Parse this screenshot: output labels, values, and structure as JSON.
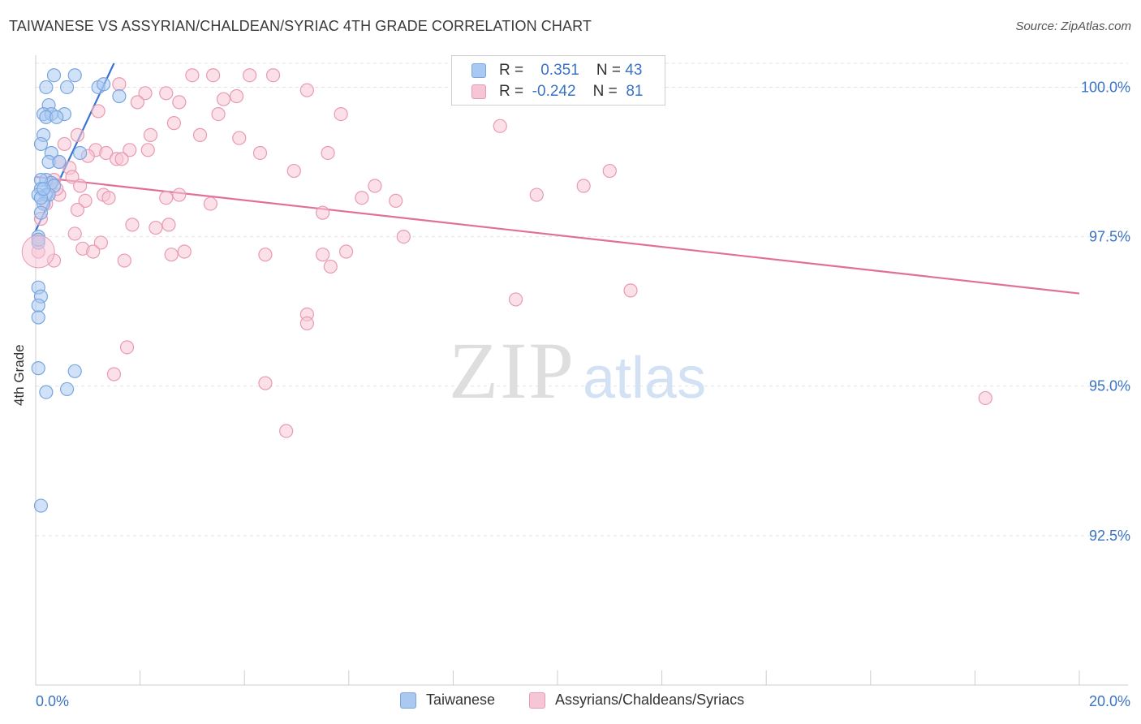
{
  "title": "TAIWANESE VS ASSYRIAN/CHALDEAN/SYRIAC 4TH GRADE CORRELATION CHART",
  "source": "Source: ZipAtlas.com",
  "watermark": {
    "zip": "ZIP",
    "atlas": "atlas"
  },
  "legend": {
    "rows": [
      {
        "r_label": "R =",
        "r_value": "0.351",
        "n_label": "N =",
        "n_value": "43",
        "color": "#a9c8f2",
        "border": "#7aa6de"
      },
      {
        "r_label": "R =",
        "r_value": "-0.242",
        "n_label": "N =",
        "n_value": "81",
        "color": "#f7c6d6",
        "border": "#e89ab4"
      }
    ]
  },
  "bottom_legend": [
    {
      "label": "Taiwanese",
      "color": "#a9c8f2",
      "border": "#7aa6de"
    },
    {
      "label": "Assyrians/Chaldeans/Syriacs",
      "color": "#f7c6d6",
      "border": "#e89ab4"
    }
  ],
  "chart_data": {
    "type": "scatter",
    "title": "TAIWANESE VS ASSYRIAN/CHALDEAN/SYRIAC 4TH GRADE CORRELATION CHART",
    "xlabel": "",
    "ylabel": "4th Grade",
    "xlim": [
      0,
      20
    ],
    "ylim": [
      90.0,
      100.4
    ],
    "x_tick_labels": [
      "0.0%",
      "20.0%"
    ],
    "y_ticks": [
      92.5,
      95.0,
      97.5,
      100.0
    ],
    "y_tick_labels": [
      "92.5%",
      "95.0%",
      "97.5%",
      "100.0%"
    ],
    "series": [
      {
        "name": "Taiwanese",
        "color": "#7aa6de",
        "fill": "#a9c8f2",
        "line_color": "#3b72d0",
        "trend": {
          "x": [
            0.0,
            1.5
          ],
          "y": [
            97.6,
            100.4
          ]
        },
        "points": [
          {
            "x": 0.35,
            "y": 100.2
          },
          {
            "x": 0.75,
            "y": 100.2
          },
          {
            "x": 0.2,
            "y": 100.0
          },
          {
            "x": 0.6,
            "y": 100.0
          },
          {
            "x": 1.2,
            "y": 100.0
          },
          {
            "x": 1.3,
            "y": 100.05
          },
          {
            "x": 1.6,
            "y": 99.85
          },
          {
            "x": 0.25,
            "y": 99.7
          },
          {
            "x": 0.15,
            "y": 99.55
          },
          {
            "x": 0.3,
            "y": 99.55
          },
          {
            "x": 0.55,
            "y": 99.55
          },
          {
            "x": 0.2,
            "y": 99.5
          },
          {
            "x": 0.4,
            "y": 99.5
          },
          {
            "x": 0.15,
            "y": 99.2
          },
          {
            "x": 0.1,
            "y": 99.05
          },
          {
            "x": 0.3,
            "y": 98.9
          },
          {
            "x": 0.85,
            "y": 98.9
          },
          {
            "x": 0.25,
            "y": 98.75
          },
          {
            "x": 0.45,
            "y": 98.75
          },
          {
            "x": 0.2,
            "y": 98.45
          },
          {
            "x": 0.3,
            "y": 98.4
          },
          {
            "x": 0.1,
            "y": 98.45
          },
          {
            "x": 0.35,
            "y": 98.35
          },
          {
            "x": 0.1,
            "y": 98.3
          },
          {
            "x": 0.2,
            "y": 98.2
          },
          {
            "x": 0.05,
            "y": 98.2
          },
          {
            "x": 0.25,
            "y": 98.2
          },
          {
            "x": 0.15,
            "y": 98.05
          },
          {
            "x": 0.1,
            "y": 97.9
          },
          {
            "x": 0.05,
            "y": 97.5
          },
          {
            "x": 0.05,
            "y": 97.4
          },
          {
            "x": 0.05,
            "y": 96.65
          },
          {
            "x": 0.1,
            "y": 96.5
          },
          {
            "x": 0.05,
            "y": 96.35
          },
          {
            "x": 0.05,
            "y": 96.15
          },
          {
            "x": 0.05,
            "y": 95.3
          },
          {
            "x": 0.75,
            "y": 95.25
          },
          {
            "x": 0.2,
            "y": 94.9
          },
          {
            "x": 0.6,
            "y": 94.95
          },
          {
            "x": 0.1,
            "y": 93.0
          },
          {
            "x": 0.05,
            "y": 97.45
          },
          {
            "x": 0.1,
            "y": 98.15
          },
          {
            "x": 0.15,
            "y": 98.3
          }
        ]
      },
      {
        "name": "Assyrians/Chaldeans/Syriacs",
        "color": "#e89ab4",
        "fill": "#f7c6d6",
        "line_color": "#e0709a",
        "trend": {
          "x": [
            0.0,
            20.0
          ],
          "y": [
            98.5,
            96.55
          ]
        },
        "points": [
          {
            "x": 3.0,
            "y": 100.2
          },
          {
            "x": 3.4,
            "y": 100.2
          },
          {
            "x": 4.1,
            "y": 100.2
          },
          {
            "x": 4.55,
            "y": 100.2
          },
          {
            "x": 1.6,
            "y": 100.05
          },
          {
            "x": 5.2,
            "y": 99.95
          },
          {
            "x": 2.1,
            "y": 99.9
          },
          {
            "x": 2.5,
            "y": 99.9
          },
          {
            "x": 3.6,
            "y": 99.8
          },
          {
            "x": 3.85,
            "y": 99.85
          },
          {
            "x": 1.95,
            "y": 99.75
          },
          {
            "x": 2.75,
            "y": 99.75
          },
          {
            "x": 1.2,
            "y": 99.6
          },
          {
            "x": 3.5,
            "y": 99.55
          },
          {
            "x": 5.85,
            "y": 99.55
          },
          {
            "x": 2.65,
            "y": 99.4
          },
          {
            "x": 8.9,
            "y": 99.35
          },
          {
            "x": 0.8,
            "y": 99.2
          },
          {
            "x": 2.2,
            "y": 99.2
          },
          {
            "x": 3.15,
            "y": 99.2
          },
          {
            "x": 3.9,
            "y": 99.15
          },
          {
            "x": 0.55,
            "y": 99.05
          },
          {
            "x": 1.15,
            "y": 98.95
          },
          {
            "x": 1.35,
            "y": 98.9
          },
          {
            "x": 1.8,
            "y": 98.95
          },
          {
            "x": 2.15,
            "y": 98.95
          },
          {
            "x": 4.3,
            "y": 98.9
          },
          {
            "x": 5.6,
            "y": 98.9
          },
          {
            "x": 1.0,
            "y": 98.85
          },
          {
            "x": 1.55,
            "y": 98.8
          },
          {
            "x": 1.65,
            "y": 98.8
          },
          {
            "x": 0.45,
            "y": 98.75
          },
          {
            "x": 0.65,
            "y": 98.65
          },
          {
            "x": 4.95,
            "y": 98.6
          },
          {
            "x": 11.0,
            "y": 98.6
          },
          {
            "x": 0.7,
            "y": 98.5
          },
          {
            "x": 0.35,
            "y": 98.45
          },
          {
            "x": 0.85,
            "y": 98.35
          },
          {
            "x": 6.5,
            "y": 98.35
          },
          {
            "x": 10.5,
            "y": 98.35
          },
          {
            "x": 0.45,
            "y": 98.2
          },
          {
            "x": 1.3,
            "y": 98.2
          },
          {
            "x": 1.4,
            "y": 98.15
          },
          {
            "x": 9.6,
            "y": 98.2
          },
          {
            "x": 6.25,
            "y": 98.15
          },
          {
            "x": 2.75,
            "y": 98.2
          },
          {
            "x": 2.5,
            "y": 98.15
          },
          {
            "x": 0.95,
            "y": 98.1
          },
          {
            "x": 3.35,
            "y": 98.05
          },
          {
            "x": 0.8,
            "y": 97.95
          },
          {
            "x": 5.5,
            "y": 97.9
          },
          {
            "x": 2.55,
            "y": 97.7
          },
          {
            "x": 1.85,
            "y": 97.7
          },
          {
            "x": 2.3,
            "y": 97.65
          },
          {
            "x": 0.75,
            "y": 97.55
          },
          {
            "x": 7.05,
            "y": 97.5
          },
          {
            "x": 1.25,
            "y": 97.4
          },
          {
            "x": 0.9,
            "y": 97.3
          },
          {
            "x": 1.1,
            "y": 97.25
          },
          {
            "x": 2.85,
            "y": 97.25
          },
          {
            "x": 2.6,
            "y": 97.2
          },
          {
            "x": 4.4,
            "y": 97.2
          },
          {
            "x": 5.5,
            "y": 97.2
          },
          {
            "x": 5.95,
            "y": 97.25
          },
          {
            "x": 0.35,
            "y": 97.1
          },
          {
            "x": 1.7,
            "y": 97.1
          },
          {
            "x": 5.65,
            "y": 97.0
          },
          {
            "x": 0.05,
            "y": 97.25
          },
          {
            "x": 9.2,
            "y": 96.45
          },
          {
            "x": 11.4,
            "y": 96.6
          },
          {
            "x": 5.2,
            "y": 96.2
          },
          {
            "x": 5.2,
            "y": 96.05
          },
          {
            "x": 1.75,
            "y": 95.65
          },
          {
            "x": 1.5,
            "y": 95.2
          },
          {
            "x": 4.4,
            "y": 95.05
          },
          {
            "x": 18.2,
            "y": 94.8
          },
          {
            "x": 4.8,
            "y": 94.25
          },
          {
            "x": 0.1,
            "y": 97.8
          },
          {
            "x": 0.2,
            "y": 98.05
          },
          {
            "x": 0.4,
            "y": 98.3
          },
          {
            "x": 6.9,
            "y": 98.1
          }
        ]
      }
    ]
  }
}
